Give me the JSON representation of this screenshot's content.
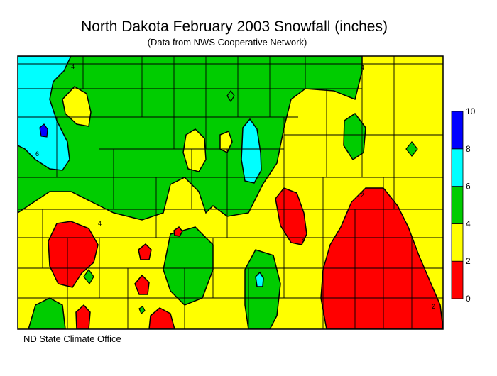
{
  "header": {
    "title": "North Dakota February 2003 Snowfall (inches)",
    "subtitle": "(Data from NWS Cooperative Network)"
  },
  "footer": {
    "credit": "ND State Climate Office"
  },
  "legend": {
    "bins": [
      {
        "from": 0,
        "to": 2,
        "color": "#ff0000"
      },
      {
        "from": 2,
        "to": 4,
        "color": "#ffff00"
      },
      {
        "from": 4,
        "to": 6,
        "color": "#00cc00"
      },
      {
        "from": 6,
        "to": 8,
        "color": "#00ffff"
      },
      {
        "from": 8,
        "to": 10,
        "color": "#0000ff"
      }
    ],
    "labels": [
      "0",
      "2",
      "4",
      "6",
      "8",
      "10"
    ]
  },
  "map": {
    "region": "North Dakota",
    "contour_interval": 2,
    "contour_labels": [
      "2",
      "4",
      "6"
    ]
  }
}
